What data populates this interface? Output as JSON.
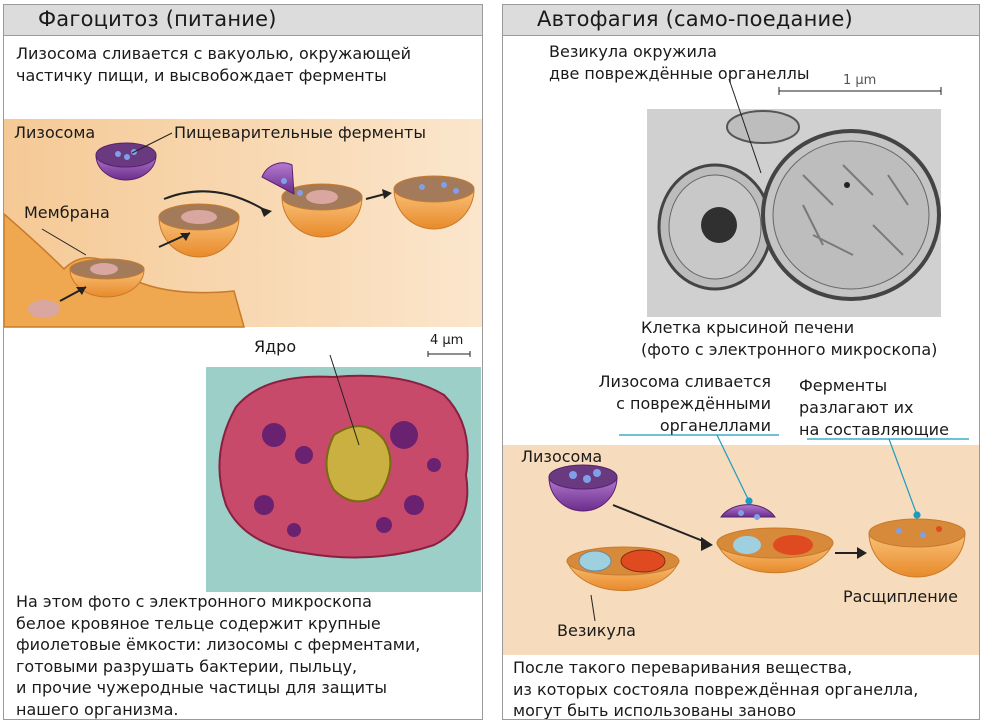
{
  "phagocytosis": {
    "title": "Фагоцитоз (питание)",
    "intro": "Лизосома сливается с вакуолью, окружающей\nчастичку пищи,  и высвобождает ферменты",
    "label_lysosome": "Лизосома",
    "label_enzymes": "Пищеварительные ферменты",
    "label_membrane": "Мембрана",
    "label_nucleus": "Ядро",
    "scale_bar": "4 μm",
    "caption": "На этом фото с электронного микроскопа\nбелое кровяное тельце содержит крупные\nфиолетовые ёмкости: лизосомы с ферментами,\nготовыми разрушать бактерии, пыльцу,\nи прочие чужеродные частицы для защиты\nнашего организма."
  },
  "autophagy": {
    "title": "Автофагия (само-поедание)",
    "vesicle_note": "Везикула окружила\nдве повреждённые органеллы",
    "scale_bar": "1 μm",
    "photo_caption": "Клетка крысиной печени\n(фото с электронного микроскопа)",
    "note_fuse": "Лизосома сливается\nс повреждёнными\nорганеллами",
    "note_enzymes": "Ферменты\nразлагают их\nна составляющие",
    "label_lysosome": "Лизосома",
    "label_vesicle": "Везикула",
    "label_breakdown": "Расщипление",
    "caption": "После такого переваривания вещества,\nиз которых состояла повреждённая органелла,\nмогут быть использованы заново"
  },
  "colors": {
    "header_bg": "#dcdcdc",
    "band_peach": "#f6d5ad",
    "vesicle_orange": "#f0a040",
    "lysosome_purple": "#7a3a9a",
    "leader_cyan": "#1a9cc0"
  }
}
